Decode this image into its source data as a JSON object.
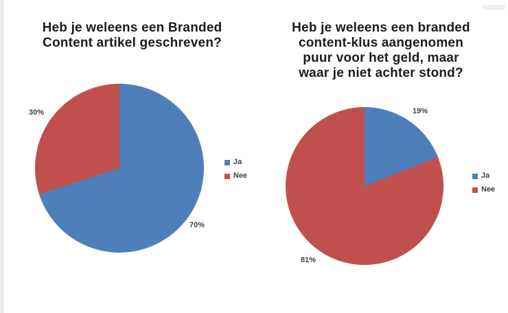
{
  "page": {
    "background": "#ffffff",
    "edge_strip_color": "#edeae7",
    "artifact_color": "#ebebeb"
  },
  "charts": [
    {
      "title_lines": [
        "Heb je weleens een Branded",
        "Content artikel geschreven?"
      ]
    },
    {
      "title_lines": [
        "Heb je weleens een branded",
        "content-klus aangenomen",
        "puur voor het geld, maar",
        "waar je niet achter stond?"
      ]
    }
  ],
  "chart_data": [
    {
      "type": "pie",
      "title": "Heb je weleens een Branded Content artikel geschreven?",
      "labels": [
        "Ja",
        "Nee"
      ],
      "values": [
        70,
        30
      ],
      "colors": [
        "#4e7fba",
        "#c0504d"
      ],
      "data_labels": [
        "70%",
        "30%"
      ],
      "start_angle_deg": 0,
      "direction": "clockwise",
      "legend_position": "right"
    },
    {
      "type": "pie",
      "title": "Heb je weleens een branded content-klus aangenomen puur voor het geld, maar waar je niet achter stond?",
      "labels": [
        "Ja",
        "Nee"
      ],
      "values": [
        19,
        81
      ],
      "colors": [
        "#4e7fba",
        "#c0504d"
      ],
      "data_labels": [
        "19%",
        "81%"
      ],
      "start_angle_deg": 0,
      "direction": "clockwise",
      "legend_position": "right"
    }
  ]
}
